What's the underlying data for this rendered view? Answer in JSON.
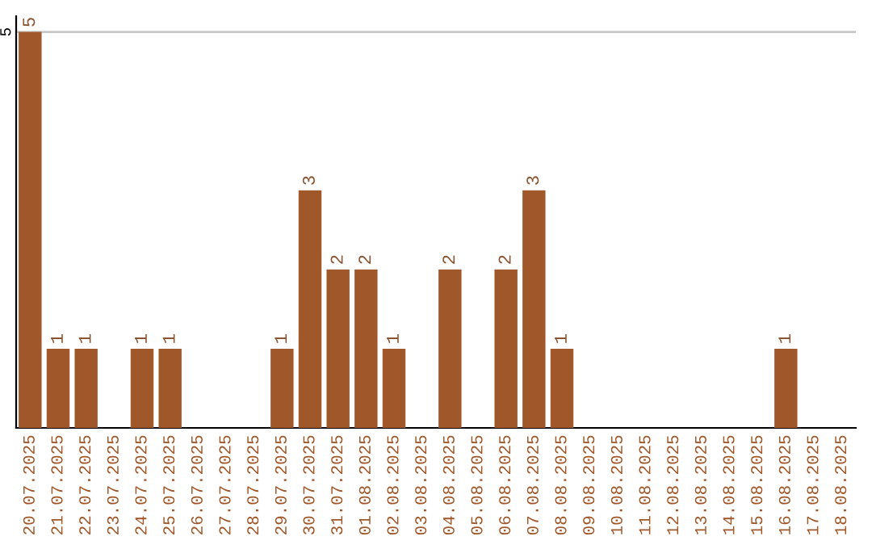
{
  "chart_data": {
    "type": "bar",
    "categories": [
      "20.07.2025",
      "21.07.2025",
      "22.07.2025",
      "23.07.2025",
      "24.07.2025",
      "25.07.2025",
      "26.07.2025",
      "27.07.2025",
      "28.07.2025",
      "29.07.2025",
      "30.07.2025",
      "31.07.2025",
      "01.08.2025",
      "02.08.2025",
      "03.08.2025",
      "04.08.2025",
      "05.08.2025",
      "06.08.2025",
      "07.08.2025",
      "08.08.2025",
      "09.08.2025",
      "10.08.2025",
      "11.08.2025",
      "12.08.2025",
      "13.08.2025",
      "14.08.2025",
      "15.08.2025",
      "16.08.2025",
      "17.08.2025",
      "18.08.2025"
    ],
    "values": [
      5,
      1,
      1,
      0,
      1,
      1,
      0,
      0,
      0,
      1,
      3,
      2,
      2,
      1,
      0,
      2,
      0,
      2,
      3,
      1,
      0,
      0,
      0,
      0,
      0,
      0,
      0,
      1,
      0,
      0
    ],
    "value_labels": [
      "5",
      "1",
      "1",
      null,
      "1",
      "1",
      null,
      null,
      null,
      "1",
      "3",
      "2",
      "2",
      "1",
      null,
      "2",
      null,
      "2",
      "3",
      "1",
      null,
      null,
      null,
      null,
      null,
      null,
      null,
      "1",
      null,
      null
    ],
    "color": "#a0582a",
    "ylim": [
      0,
      5.2
    ],
    "yticks": [
      5
    ],
    "grid": "y",
    "legend": false
  }
}
